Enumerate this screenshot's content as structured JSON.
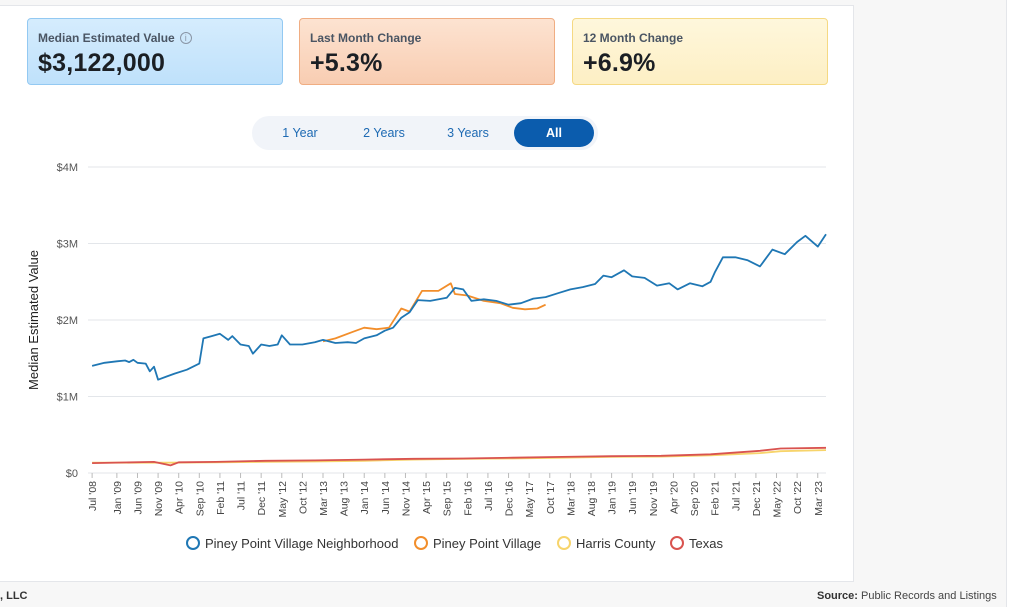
{
  "stats": [
    {
      "label": "Median Estimated Value",
      "value": "$3,122,000",
      "info_icon": "info-icon"
    },
    {
      "label": "Last Month Change",
      "value": "+5.3%"
    },
    {
      "label": "12 Month Change",
      "value": "+6.9%"
    }
  ],
  "tabs": [
    {
      "label": "1 Year",
      "active": false
    },
    {
      "label": "2 Years",
      "active": false
    },
    {
      "label": "3 Years",
      "active": false
    },
    {
      "label": "All",
      "active": true
    }
  ],
  "footer": {
    "left": ", LLC",
    "source_label": "Source:",
    "source_value": " Public Records and Listings"
  },
  "chart_data": {
    "type": "line",
    "ylabel": "Median Estimated Value",
    "ylim": [
      0,
      4000000
    ],
    "ytick_values": [
      0,
      1000000,
      2000000,
      3000000,
      4000000
    ],
    "ytick_labels": [
      "$0",
      "$1M",
      "$2M",
      "$3M",
      "$4M"
    ],
    "xlim": [
      "2008-06",
      "2023-05"
    ],
    "xtick_labels": [
      "Jul '08",
      "Jan '09",
      "Jun '09",
      "Nov '09",
      "Apr '10",
      "Sep '10",
      "Feb '11",
      "Jul '11",
      "Dec '11",
      "May '12",
      "Oct '12",
      "Mar '13",
      "Aug '13",
      "Jan '14",
      "Jun '14",
      "Nov '14",
      "Apr '15",
      "Sep '15",
      "Feb '16",
      "Jul '16",
      "Dec '16",
      "May '17",
      "Oct '17",
      "Mar '18",
      "Aug '18",
      "Jan '19",
      "Jun '19",
      "Nov '19",
      "Apr '20",
      "Sep '20",
      "Feb '21",
      "Jul '21",
      "Dec '21",
      "May '22",
      "Oct '22",
      "Mar '23"
    ],
    "xtick_dates": [
      "2008-07",
      "2009-01",
      "2009-06",
      "2009-11",
      "2010-04",
      "2010-09",
      "2011-02",
      "2011-07",
      "2011-12",
      "2012-05",
      "2012-10",
      "2013-03",
      "2013-08",
      "2014-01",
      "2014-06",
      "2014-11",
      "2015-04",
      "2015-09",
      "2016-02",
      "2016-07",
      "2016-12",
      "2017-05",
      "2017-10",
      "2018-03",
      "2018-08",
      "2019-01",
      "2019-06",
      "2019-11",
      "2020-04",
      "2020-09",
      "2021-02",
      "2021-07",
      "2021-12",
      "2022-05",
      "2022-10",
      "2023-03"
    ],
    "grid": true,
    "legend_position": "bottom",
    "series": [
      {
        "name": "Piney Point Village Neighborhood",
        "color": "#1f77b4",
        "points": [
          [
            "2008-07",
            1400000
          ],
          [
            "2008-10",
            1440000
          ],
          [
            "2009-01",
            1460000
          ],
          [
            "2009-03",
            1470000
          ],
          [
            "2009-04",
            1450000
          ],
          [
            "2009-05",
            1480000
          ],
          [
            "2009-06",
            1440000
          ],
          [
            "2009-08",
            1430000
          ],
          [
            "2009-09",
            1330000
          ],
          [
            "2009-10",
            1390000
          ],
          [
            "2009-11",
            1220000
          ],
          [
            "2010-01",
            1260000
          ],
          [
            "2010-03",
            1300000
          ],
          [
            "2010-06",
            1350000
          ],
          [
            "2010-09",
            1430000
          ],
          [
            "2010-10",
            1760000
          ],
          [
            "2010-12",
            1790000
          ],
          [
            "2011-02",
            1820000
          ],
          [
            "2011-04",
            1740000
          ],
          [
            "2011-05",
            1790000
          ],
          [
            "2011-07",
            1680000
          ],
          [
            "2011-09",
            1660000
          ],
          [
            "2011-10",
            1560000
          ],
          [
            "2011-12",
            1680000
          ],
          [
            "2012-02",
            1660000
          ],
          [
            "2012-04",
            1680000
          ],
          [
            "2012-05",
            1800000
          ],
          [
            "2012-07",
            1680000
          ],
          [
            "2012-10",
            1680000
          ],
          [
            "2013-01",
            1710000
          ],
          [
            "2013-03",
            1740000
          ],
          [
            "2013-06",
            1700000
          ],
          [
            "2013-09",
            1710000
          ],
          [
            "2013-11",
            1700000
          ],
          [
            "2014-01",
            1760000
          ],
          [
            "2014-04",
            1800000
          ],
          [
            "2014-06",
            1860000
          ],
          [
            "2014-08",
            1900000
          ],
          [
            "2014-10",
            2030000
          ],
          [
            "2014-12",
            2100000
          ],
          [
            "2015-02",
            2260000
          ],
          [
            "2015-05",
            2250000
          ],
          [
            "2015-09",
            2290000
          ],
          [
            "2015-11",
            2420000
          ],
          [
            "2016-01",
            2400000
          ],
          [
            "2016-03",
            2250000
          ],
          [
            "2016-06",
            2270000
          ],
          [
            "2016-09",
            2250000
          ],
          [
            "2016-12",
            2200000
          ],
          [
            "2017-03",
            2220000
          ],
          [
            "2017-06",
            2280000
          ],
          [
            "2017-09",
            2300000
          ],
          [
            "2017-12",
            2350000
          ],
          [
            "2018-03",
            2400000
          ],
          [
            "2018-06",
            2430000
          ],
          [
            "2018-09",
            2470000
          ],
          [
            "2018-11",
            2580000
          ],
          [
            "2019-01",
            2560000
          ],
          [
            "2019-04",
            2650000
          ],
          [
            "2019-06",
            2570000
          ],
          [
            "2019-09",
            2550000
          ],
          [
            "2019-12",
            2450000
          ],
          [
            "2020-03",
            2480000
          ],
          [
            "2020-05",
            2400000
          ],
          [
            "2020-08",
            2480000
          ],
          [
            "2020-11",
            2440000
          ],
          [
            "2021-01",
            2500000
          ],
          [
            "2021-02",
            2620000
          ],
          [
            "2021-04",
            2820000
          ],
          [
            "2021-07",
            2820000
          ],
          [
            "2021-10",
            2780000
          ],
          [
            "2022-01",
            2700000
          ],
          [
            "2022-04",
            2920000
          ],
          [
            "2022-07",
            2860000
          ],
          [
            "2022-10",
            3020000
          ],
          [
            "2022-12",
            3100000
          ],
          [
            "2023-03",
            2960000
          ],
          [
            "2023-05",
            3122000
          ]
        ]
      },
      {
        "name": "Piney Point Village",
        "color": "#f28e2b",
        "points": [
          [
            "2013-03",
            1720000
          ],
          [
            "2013-06",
            1760000
          ],
          [
            "2013-10",
            1840000
          ],
          [
            "2014-01",
            1900000
          ],
          [
            "2014-04",
            1880000
          ],
          [
            "2014-07",
            1900000
          ],
          [
            "2014-10",
            2150000
          ],
          [
            "2014-12",
            2110000
          ],
          [
            "2015-03",
            2380000
          ],
          [
            "2015-07",
            2380000
          ],
          [
            "2015-10",
            2480000
          ],
          [
            "2015-11",
            2340000
          ],
          [
            "2016-02",
            2320000
          ],
          [
            "2016-06",
            2250000
          ],
          [
            "2016-10",
            2220000
          ],
          [
            "2017-01",
            2160000
          ],
          [
            "2017-04",
            2140000
          ],
          [
            "2017-07",
            2150000
          ],
          [
            "2017-09",
            2200000
          ]
        ]
      },
      {
        "name": "Harris County",
        "color": "#f7d46b",
        "points": [
          [
            "2008-07",
            135000
          ],
          [
            "2010-01",
            135000
          ],
          [
            "2011-01",
            140000
          ],
          [
            "2012-01",
            145000
          ],
          [
            "2013-01",
            150000
          ],
          [
            "2014-01",
            160000
          ],
          [
            "2015-01",
            175000
          ],
          [
            "2016-01",
            185000
          ],
          [
            "2017-01",
            190000
          ],
          [
            "2018-01",
            200000
          ],
          [
            "2019-01",
            210000
          ],
          [
            "2020-01",
            215000
          ],
          [
            "2021-01",
            230000
          ],
          [
            "2022-01",
            260000
          ],
          [
            "2022-06",
            285000
          ],
          [
            "2023-05",
            300000
          ]
        ]
      },
      {
        "name": "Texas",
        "color": "#d9534f",
        "points": [
          [
            "2008-07",
            130000
          ],
          [
            "2009-10",
            145000
          ],
          [
            "2010-02",
            100000
          ],
          [
            "2010-04",
            140000
          ],
          [
            "2011-01",
            145000
          ],
          [
            "2012-01",
            160000
          ],
          [
            "2013-01",
            165000
          ],
          [
            "2014-01",
            175000
          ],
          [
            "2015-01",
            185000
          ],
          [
            "2016-01",
            190000
          ],
          [
            "2017-01",
            200000
          ],
          [
            "2018-01",
            210000
          ],
          [
            "2019-01",
            220000
          ],
          [
            "2020-01",
            225000
          ],
          [
            "2021-01",
            245000
          ],
          [
            "2022-01",
            290000
          ],
          [
            "2022-06",
            320000
          ],
          [
            "2023-05",
            330000
          ]
        ]
      }
    ]
  }
}
